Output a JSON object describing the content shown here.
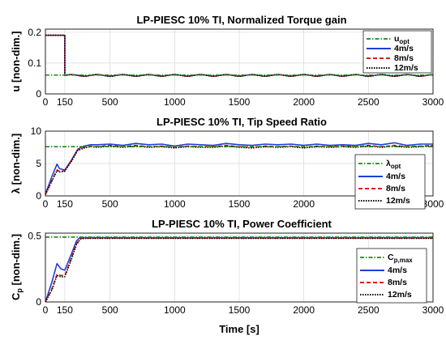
{
  "chart_data": [
    {
      "type": "line",
      "title": "LP-PIESC 10% TI, Normalized Torque gain",
      "xlabel": "",
      "ylabel": "u [non-dim.]",
      "xlim": [
        0,
        3000
      ],
      "ylim": [
        0,
        0.21
      ],
      "xticks": [
        0,
        150,
        500,
        1000,
        1500,
        2000,
        2500,
        3000
      ],
      "yticks": [
        0,
        0.1,
        0.2
      ],
      "ytick_labels": [
        "0",
        "0.1",
        "0.2"
      ],
      "grid": true,
      "legend_position": "top-right",
      "reference": {
        "name": "u",
        "sub": "opt",
        "value": 0.061
      },
      "series": [
        {
          "name": "4m/s",
          "initial": 0.19,
          "switch_time": 150,
          "mean": 0.06,
          "amplitude": 0.0025,
          "period": 200
        },
        {
          "name": "8m/s",
          "initial": 0.19,
          "switch_time": 150,
          "mean": 0.06,
          "amplitude": 0.0025,
          "period": 200
        },
        {
          "name": "12m/s",
          "initial": 0.19,
          "switch_time": 150,
          "mean": 0.06,
          "amplitude": 0.0025,
          "period": 200
        }
      ]
    },
    {
      "type": "line",
      "title": "LP-PIESC 10% TI, Tip Speed Ratio",
      "xlabel": "",
      "ylabel": "λ [non-dim.]",
      "xlim": [
        0,
        3000
      ],
      "ylim": [
        0,
        10
      ],
      "xticks": [
        0,
        150,
        500,
        1000,
        1500,
        2000,
        2500,
        3000
      ],
      "yticks": [
        0,
        5,
        10
      ],
      "ytick_labels": [
        "0",
        "5",
        "10"
      ],
      "grid": true,
      "legend_position": "bottom-right",
      "reference": {
        "name": "λ",
        "sub": "opt",
        "value": 7.6
      },
      "series": [
        {
          "name": "4m/s",
          "points": [
            [
              0,
              0.3
            ],
            [
              50,
              3.0
            ],
            [
              90,
              4.9
            ],
            [
              110,
              4.2
            ],
            [
              150,
              4.0
            ],
            [
              200,
              5.5
            ],
            [
              250,
              7.2
            ],
            [
              300,
              7.7
            ],
            [
              350,
              7.9
            ],
            [
              400,
              7.9
            ],
            [
              500,
              8.0
            ],
            [
              600,
              7.8
            ],
            [
              700,
              8.1
            ],
            [
              800,
              7.9
            ],
            [
              900,
              8.0
            ],
            [
              1000,
              7.7
            ],
            [
              1100,
              8.0
            ],
            [
              1200,
              7.9
            ],
            [
              1300,
              7.8
            ],
            [
              1400,
              8.1
            ],
            [
              1500,
              7.9
            ],
            [
              1600,
              7.8
            ],
            [
              1700,
              8.0
            ],
            [
              1800,
              7.9
            ],
            [
              1900,
              8.0
            ],
            [
              2000,
              7.8
            ],
            [
              2100,
              8.0
            ],
            [
              2200,
              7.8
            ],
            [
              2300,
              7.9
            ],
            [
              2400,
              7.8
            ],
            [
              2500,
              8.1
            ],
            [
              2600,
              7.9
            ],
            [
              2700,
              8.2
            ],
            [
              2800,
              7.8
            ],
            [
              2900,
              8.0
            ],
            [
              3000,
              8.0
            ]
          ]
        },
        {
          "name": "8m/s",
          "points": [
            [
              0,
              0.2
            ],
            [
              50,
              2.4
            ],
            [
              90,
              4.0
            ],
            [
              110,
              3.8
            ],
            [
              150,
              3.9
            ],
            [
              200,
              5.4
            ],
            [
              250,
              7.1
            ],
            [
              300,
              7.5
            ],
            [
              350,
              7.7
            ],
            [
              400,
              7.6
            ],
            [
              500,
              7.8
            ],
            [
              600,
              7.6
            ],
            [
              700,
              7.8
            ],
            [
              800,
              7.6
            ],
            [
              900,
              7.7
            ],
            [
              1000,
              7.5
            ],
            [
              1100,
              7.7
            ],
            [
              1200,
              7.6
            ],
            [
              1300,
              7.6
            ],
            [
              1400,
              7.8
            ],
            [
              1500,
              7.6
            ],
            [
              1600,
              7.5
            ],
            [
              1700,
              7.7
            ],
            [
              1800,
              7.6
            ],
            [
              1900,
              7.7
            ],
            [
              2000,
              7.5
            ],
            [
              2100,
              7.7
            ],
            [
              2200,
              7.6
            ],
            [
              2300,
              7.7
            ],
            [
              2400,
              7.6
            ],
            [
              2500,
              7.8
            ],
            [
              2600,
              7.6
            ],
            [
              2700,
              7.8
            ],
            [
              2800,
              7.6
            ],
            [
              2900,
              7.7
            ],
            [
              3000,
              7.8
            ]
          ]
        },
        {
          "name": "12m/s",
          "points": [
            [
              0,
              0.2
            ],
            [
              50,
              2.3
            ],
            [
              90,
              3.9
            ],
            [
              110,
              3.7
            ],
            [
              150,
              3.8
            ],
            [
              200,
              5.3
            ],
            [
              250,
              7.0
            ],
            [
              300,
              7.4
            ],
            [
              350,
              7.6
            ],
            [
              400,
              7.5
            ],
            [
              500,
              7.7
            ],
            [
              600,
              7.5
            ],
            [
              700,
              7.7
            ],
            [
              800,
              7.5
            ],
            [
              900,
              7.6
            ],
            [
              1000,
              7.4
            ],
            [
              1100,
              7.6
            ],
            [
              1200,
              7.5
            ],
            [
              1300,
              7.5
            ],
            [
              1400,
              7.7
            ],
            [
              1500,
              7.5
            ],
            [
              1600,
              7.4
            ],
            [
              1700,
              7.6
            ],
            [
              1800,
              7.5
            ],
            [
              1900,
              7.6
            ],
            [
              2000,
              7.4
            ],
            [
              2100,
              7.6
            ],
            [
              2200,
              7.5
            ],
            [
              2300,
              7.6
            ],
            [
              2400,
              7.5
            ],
            [
              2500,
              7.7
            ],
            [
              2600,
              7.5
            ],
            [
              2700,
              7.7
            ],
            [
              2800,
              7.5
            ],
            [
              2900,
              7.6
            ],
            [
              3000,
              7.7
            ]
          ]
        }
      ]
    },
    {
      "type": "line",
      "title": "LP-PIESC 10% TI, Power Coefficient",
      "xlabel": "Time [s]",
      "ylabel": "C",
      "ylabel_sub": "p",
      "ylabel_rest": " [non-dim.]",
      "xlim": [
        0,
        3000
      ],
      "ylim": [
        0,
        0.52
      ],
      "xticks": [
        0,
        150,
        500,
        1000,
        1500,
        2000,
        2500,
        3000
      ],
      "yticks": [
        0,
        0.5
      ],
      "ytick_labels": [
        "0",
        "0.5"
      ],
      "grid": true,
      "legend_position": "bottom-right",
      "reference": {
        "name": "C",
        "sub": "p,max",
        "value": 0.49
      },
      "series": [
        {
          "name": "4m/s",
          "points": [
            [
              0,
              0.0
            ],
            [
              50,
              0.15
            ],
            [
              90,
              0.29
            ],
            [
              120,
              0.25
            ],
            [
              150,
              0.24
            ],
            [
              200,
              0.36
            ],
            [
              240,
              0.46
            ],
            [
              270,
              0.49
            ],
            [
              300,
              0.485
            ],
            [
              3000,
              0.485
            ]
          ]
        },
        {
          "name": "8m/s",
          "points": [
            [
              0,
              0.0
            ],
            [
              50,
              0.1
            ],
            [
              90,
              0.21
            ],
            [
              120,
              0.2
            ],
            [
              150,
              0.2
            ],
            [
              200,
              0.33
            ],
            [
              240,
              0.44
            ],
            [
              270,
              0.48
            ],
            [
              300,
              0.482
            ],
            [
              3000,
              0.482
            ]
          ]
        },
        {
          "name": "12m/s",
          "points": [
            [
              0,
              0.0
            ],
            [
              50,
              0.09
            ],
            [
              90,
              0.2
            ],
            [
              120,
              0.19
            ],
            [
              150,
              0.19
            ],
            [
              200,
              0.32
            ],
            [
              240,
              0.43
            ],
            [
              270,
              0.475
            ],
            [
              300,
              0.48
            ],
            [
              3000,
              0.48
            ]
          ]
        }
      ]
    }
  ],
  "colors": {
    "reference": "#1a8a1a",
    "series": [
      "#1f3fd6",
      "#e01b1b",
      "#000000"
    ],
    "grid": "#d9d9d9"
  }
}
